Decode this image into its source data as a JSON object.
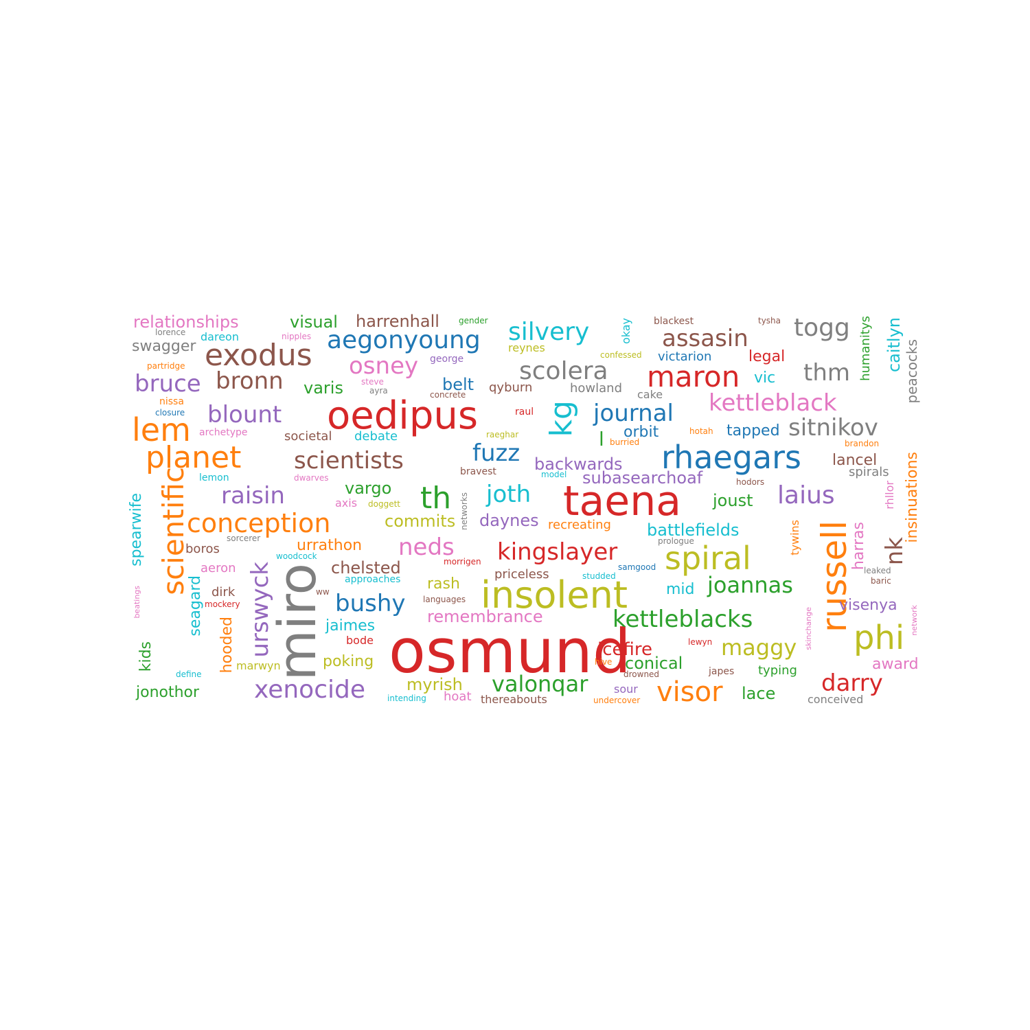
{
  "palette": {
    "red": "#d62728",
    "orange": "#ff7f0e",
    "green": "#2ca02c",
    "blue": "#1f77b4",
    "purple": "#9467bd",
    "brown": "#8c564b",
    "pink": "#e377c2",
    "gray": "#7f7f7f",
    "olive": "#bcbd22",
    "cyan": "#17becf"
  },
  "words": [
    {
      "text": "osmund",
      "color": "red"
    },
    {
      "text": "miro",
      "color": "gray"
    },
    {
      "text": "taena",
      "color": "red"
    },
    {
      "text": "oedipus",
      "color": "red"
    },
    {
      "text": "insolent",
      "color": "olive"
    },
    {
      "text": "russell",
      "color": "orange"
    },
    {
      "text": "rhaegars",
      "color": "blue"
    },
    {
      "text": "phi",
      "color": "olive"
    },
    {
      "text": "scientific",
      "color": "orange"
    },
    {
      "text": "spiral",
      "color": "olive"
    },
    {
      "text": "exodus",
      "color": "brown"
    },
    {
      "text": "lem",
      "color": "orange"
    },
    {
      "text": "planet",
      "color": "orange"
    },
    {
      "text": "kg",
      "color": "cyan"
    },
    {
      "text": "maron",
      "color": "red"
    },
    {
      "text": "aegonyoung",
      "color": "blue"
    },
    {
      "text": "th",
      "color": "green"
    },
    {
      "text": "conception",
      "color": "orange"
    },
    {
      "text": "kettleblacks",
      "color": "green"
    },
    {
      "text": "xenocide",
      "color": "purple"
    },
    {
      "text": "visor",
      "color": "orange"
    },
    {
      "text": "scolera",
      "color": "gray"
    },
    {
      "text": "kettleblack",
      "color": "pink"
    },
    {
      "text": "urswyck",
      "color": "purple"
    },
    {
      "text": "silvery",
      "color": "cyan"
    },
    {
      "text": "kingslayer",
      "color": "red"
    },
    {
      "text": "bushy",
      "color": "blue"
    },
    {
      "text": "scientists",
      "color": "brown"
    },
    {
      "text": "togg",
      "color": "gray"
    },
    {
      "text": "assasin",
      "color": "brown"
    },
    {
      "text": "sitnikov",
      "color": "gray"
    },
    {
      "text": "laius",
      "color": "purple"
    },
    {
      "text": "joannas",
      "color": "green"
    },
    {
      "text": "valonqar",
      "color": "green"
    },
    {
      "text": "maggy",
      "color": "olive"
    },
    {
      "text": "darry",
      "color": "red"
    },
    {
      "text": "journal",
      "color": "blue"
    },
    {
      "text": "bruce",
      "color": "purple"
    },
    {
      "text": "bronn",
      "color": "brown"
    },
    {
      "text": "blount",
      "color": "purple"
    },
    {
      "text": "thm",
      "color": "gray"
    },
    {
      "text": "joth",
      "color": "cyan"
    },
    {
      "text": "osney",
      "color": "pink"
    },
    {
      "text": "fuzz",
      "color": "blue"
    },
    {
      "text": "raisin",
      "color": "purple"
    },
    {
      "text": "nk",
      "color": "brown"
    },
    {
      "text": "neds",
      "color": "pink"
    },
    {
      "text": "icefire",
      "color": "red"
    },
    {
      "text": "spearwife",
      "color": "cyan"
    },
    {
      "text": "insinuations",
      "color": "orange"
    },
    {
      "text": "caitlyn",
      "color": "cyan"
    },
    {
      "text": "battlefields",
      "color": "cyan"
    },
    {
      "text": "chelsted",
      "color": "brown"
    },
    {
      "text": "conical",
      "color": "green"
    },
    {
      "text": "myrish",
      "color": "olive"
    },
    {
      "text": "remembrance",
      "color": "pink"
    },
    {
      "text": "relationships",
      "color": "pink"
    },
    {
      "text": "visual",
      "color": "green"
    },
    {
      "text": "harrenhall",
      "color": "brown"
    },
    {
      "text": "varis",
      "color": "green"
    },
    {
      "text": "backwards",
      "color": "purple"
    },
    {
      "text": "subasearchoaf",
      "color": "purple"
    },
    {
      "text": "joust",
      "color": "green"
    },
    {
      "text": "commits",
      "color": "olive"
    },
    {
      "text": "urrathon",
      "color": "orange"
    },
    {
      "text": "swagger",
      "color": "gray"
    },
    {
      "text": "vargo",
      "color": "green"
    },
    {
      "text": "daynes",
      "color": "purple"
    },
    {
      "text": "lancel",
      "color": "brown"
    },
    {
      "text": "harras",
      "color": "pink"
    },
    {
      "text": "visenya",
      "color": "purple"
    },
    {
      "text": "peacocks",
      "color": "gray"
    },
    {
      "text": "seagard",
      "color": "cyan"
    },
    {
      "text": "jonothor",
      "color": "green"
    },
    {
      "text": "lace",
      "color": "green"
    },
    {
      "text": "kids",
      "color": "green"
    },
    {
      "text": "hooded",
      "color": "orange"
    },
    {
      "text": "poking",
      "color": "olive"
    },
    {
      "text": "orbit",
      "color": "blue"
    },
    {
      "text": "tapped",
      "color": "blue"
    },
    {
      "text": "belt",
      "color": "blue"
    },
    {
      "text": "rash",
      "color": "olive"
    },
    {
      "text": "mid",
      "color": "cyan"
    },
    {
      "text": "jaimes",
      "color": "cyan"
    },
    {
      "text": "award",
      "color": "pink"
    },
    {
      "text": "legal",
      "color": "red"
    },
    {
      "text": "vic",
      "color": "cyan"
    },
    {
      "text": "l",
      "color": "green"
    },
    {
      "text": "humanitys",
      "color": "green"
    },
    {
      "text": "victarion",
      "color": "blue"
    },
    {
      "text": "dareon",
      "color": "cyan"
    },
    {
      "text": "spirals",
      "color": "gray"
    },
    {
      "text": "hoat",
      "color": "pink"
    },
    {
      "text": "typing",
      "color": "green"
    },
    {
      "text": "dirk",
      "color": "brown"
    },
    {
      "text": "boros",
      "color": "brown"
    },
    {
      "text": "aeron",
      "color": "pink"
    },
    {
      "text": "qyburn",
      "color": "brown"
    },
    {
      "text": "howland",
      "color": "gray"
    },
    {
      "text": "priceless",
      "color": "brown"
    },
    {
      "text": "societal",
      "color": "brown"
    },
    {
      "text": "debate",
      "color": "cyan"
    },
    {
      "text": "recreating",
      "color": "orange"
    },
    {
      "text": "thereabouts",
      "color": "brown"
    },
    {
      "text": "conceived",
      "color": "gray"
    },
    {
      "text": "rhllor",
      "color": "pink"
    },
    {
      "text": "tywins",
      "color": "orange"
    },
    {
      "text": "marwyn",
      "color": "olive"
    },
    {
      "text": "cake",
      "color": "gray"
    },
    {
      "text": "okay",
      "color": "cyan"
    },
    {
      "text": "reynes",
      "color": "olive"
    },
    {
      "text": "bode",
      "color": "red"
    },
    {
      "text": "sour",
      "color": "purple"
    },
    {
      "text": "blackest",
      "color": "brown"
    },
    {
      "text": "approaches",
      "color": "cyan"
    },
    {
      "text": "bravest",
      "color": "brown"
    },
    {
      "text": "axis",
      "color": "pink"
    },
    {
      "text": "japes",
      "color": "brown"
    },
    {
      "text": "lemon",
      "color": "cyan"
    },
    {
      "text": "nissa",
      "color": "orange"
    },
    {
      "text": "raul",
      "color": "red"
    },
    {
      "text": "undercover",
      "color": "orange"
    },
    {
      "text": "intending",
      "color": "cyan"
    },
    {
      "text": "hive",
      "color": "orange"
    },
    {
      "text": "drowned",
      "color": "brown"
    },
    {
      "text": "lewyn",
      "color": "red"
    },
    {
      "text": "archetype",
      "color": "pink"
    },
    {
      "text": "closure",
      "color": "blue"
    },
    {
      "text": "concrete",
      "color": "brown"
    },
    {
      "text": "raeghar",
      "color": "olive"
    },
    {
      "text": "burried",
      "color": "orange"
    },
    {
      "text": "hotah",
      "color": "orange"
    },
    {
      "text": "brandon",
      "color": "orange"
    },
    {
      "text": "partridge",
      "color": "orange"
    },
    {
      "text": "george",
      "color": "purple"
    },
    {
      "text": "confessed",
      "color": "olive"
    },
    {
      "text": "steve",
      "color": "pink"
    },
    {
      "text": "ayra",
      "color": "gray"
    },
    {
      "text": "nipples",
      "color": "pink"
    },
    {
      "text": "lorence",
      "color": "gray"
    },
    {
      "text": "tysha",
      "color": "brown"
    },
    {
      "text": "gender",
      "color": "green"
    },
    {
      "text": "dwarves",
      "color": "pink"
    },
    {
      "text": "model",
      "color": "cyan"
    },
    {
      "text": "hodors",
      "color": "brown"
    },
    {
      "text": "doggett",
      "color": "olive"
    },
    {
      "text": "networks",
      "color": "gray"
    },
    {
      "text": "sorcerer",
      "color": "gray"
    },
    {
      "text": "prologue",
      "color": "gray"
    },
    {
      "text": "woodcock",
      "color": "cyan"
    },
    {
      "text": "morrigen",
      "color": "red"
    },
    {
      "text": "studded",
      "color": "cyan"
    },
    {
      "text": "samgood",
      "color": "blue"
    },
    {
      "text": "leaked",
      "color": "gray"
    },
    {
      "text": "baric",
      "color": "brown"
    },
    {
      "text": "ww",
      "color": "brown"
    },
    {
      "text": "mockery",
      "color": "red"
    },
    {
      "text": "languages",
      "color": "brown"
    },
    {
      "text": "beatings",
      "color": "pink"
    },
    {
      "text": "define",
      "color": "cyan"
    },
    {
      "text": "skinchange",
      "color": "pink"
    },
    {
      "text": "network",
      "color": "pink"
    }
  ]
}
